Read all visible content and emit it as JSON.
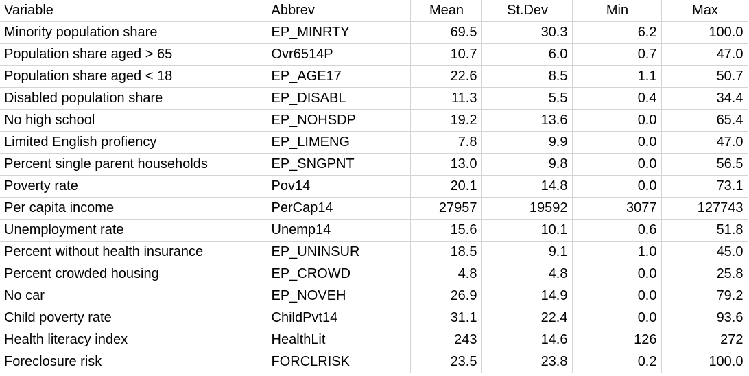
{
  "headers": [
    "Variable",
    "Abbrev",
    "Mean",
    "St.Dev",
    "Min",
    "Max"
  ],
  "rows": [
    [
      "Minority population share",
      "EP_MINRTY",
      "69.5",
      "30.3",
      "6.2",
      "100.0"
    ],
    [
      "Population share aged > 65",
      "Ovr6514P",
      "10.7",
      "6.0",
      "0.7",
      "47.0"
    ],
    [
      "Population share aged < 18",
      "EP_AGE17",
      "22.6",
      "8.5",
      "1.1",
      "50.7"
    ],
    [
      "Disabled population share",
      "EP_DISABL",
      "11.3",
      "5.5",
      "0.4",
      "34.4"
    ],
    [
      "No high school",
      "EP_NOHSDP",
      "19.2",
      "13.6",
      "0.0",
      "65.4"
    ],
    [
      "Limited English profiency",
      "EP_LIMENG",
      "7.8",
      "9.9",
      "0.0",
      "47.0"
    ],
    [
      "Percent single parent households",
      "EP_SNGPNT",
      "13.0",
      "9.8",
      "0.0",
      "56.5"
    ],
    [
      "Poverty rate",
      "Pov14",
      "20.1",
      "14.8",
      "0.0",
      "73.1"
    ],
    [
      "Per capita income",
      "PerCap14",
      "27957",
      "19592",
      "3077",
      "127743"
    ],
    [
      "Unemployment rate",
      "Unemp14",
      "15.6",
      "10.1",
      "0.6",
      "51.8"
    ],
    [
      "Percent without health insurance",
      "EP_UNINSUR",
      "18.5",
      "9.1",
      "1.0",
      "45.0"
    ],
    [
      "Percent crowded housing",
      "EP_CROWD",
      "4.8",
      "4.8",
      "0.0",
      "25.8"
    ],
    [
      "No car",
      "EP_NOVEH",
      "26.9",
      "14.9",
      "0.0",
      "79.2"
    ],
    [
      "Child poverty rate",
      "ChildPvt14",
      "31.1",
      "22.4",
      "0.0",
      "93.6"
    ],
    [
      "Health literacy index",
      "HealthLit",
      "243",
      "14.6",
      "126",
      "272"
    ],
    [
      "Foreclosure risk",
      "FORCLRISK",
      "23.5",
      "23.8",
      "0.2",
      "100.0"
    ]
  ]
}
